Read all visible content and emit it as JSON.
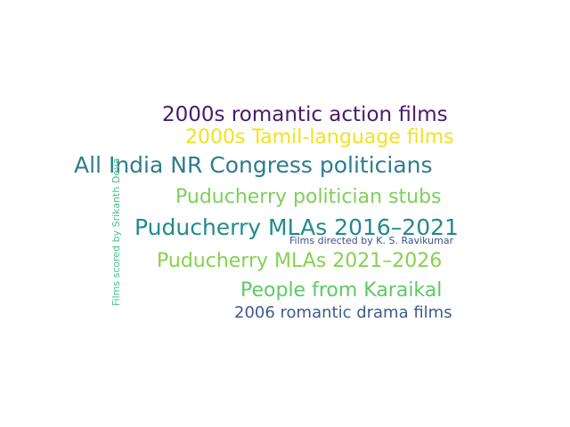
{
  "word_cloud": {
    "words": [
      {
        "text": "2000s romantic action films",
        "color": "#4a1a6b"
      },
      {
        "text": "2000s Tamil-language films",
        "color": "#f2e21c"
      },
      {
        "text": "All India NR Congress politicians",
        "color": "#2d7d8e"
      },
      {
        "text": "Puducherry politician stubs",
        "color": "#7dd05a"
      },
      {
        "text": "Puducherry MLAs 2016–2021",
        "color": "#238a8d"
      },
      {
        "text": "Films directed by K. S. Ravikumar",
        "color": "#3b4f8a"
      },
      {
        "text": "Puducherry MLAs 2021–2026",
        "color": "#86d14f"
      },
      {
        "text": "People from Karaikal",
        "color": "#5ec962"
      },
      {
        "text": "2006 romantic drama films",
        "color": "#3e5a8c"
      },
      {
        "text": "Films scored by Srikanth Deva",
        "color": "#48c08a"
      }
    ]
  }
}
